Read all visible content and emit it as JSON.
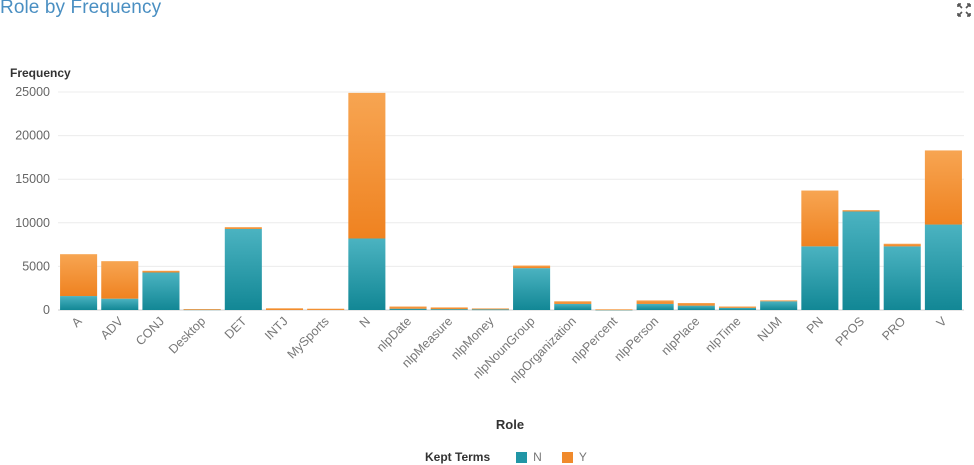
{
  "title": "Role by Frequency",
  "icons": {
    "maximize": "maximize-icon"
  },
  "chart_data": {
    "type": "bar",
    "stacked": true,
    "ylabel": "Frequency",
    "xlabel": "Role",
    "ylim": [
      0,
      25000
    ],
    "yticks": [
      0,
      5000,
      10000,
      15000,
      20000,
      25000
    ],
    "grid": true,
    "legend": {
      "title": "Kept Terms",
      "position": "bottom"
    },
    "categories": [
      "A",
      "ADV",
      "CONJ",
      "Desktop",
      "DET",
      "INTJ",
      "MySports",
      "N",
      "nlpDate",
      "nlpMeasure",
      "nlpMoney",
      "nlpNounGroup",
      "nlpOrganization",
      "nlpPercent",
      "nlpPerson",
      "nlpPlace",
      "nlpTime",
      "NUM",
      "PN",
      "PPOS",
      "PRO",
      "V"
    ],
    "series": [
      {
        "name": "N",
        "color": "#2196a6",
        "values": [
          1600,
          1300,
          4300,
          80,
          9300,
          0,
          0,
          8200,
          150,
          100,
          80,
          4800,
          700,
          50,
          700,
          500,
          250,
          1000,
          7300,
          11300,
          7300,
          9800
        ]
      },
      {
        "name": "Y",
        "color": "#f08a2c",
        "values": [
          4800,
          4300,
          200,
          20,
          200,
          200,
          150,
          16700,
          250,
          200,
          100,
          300,
          300,
          30,
          400,
          300,
          150,
          100,
          6400,
          150,
          300,
          8500
        ]
      }
    ]
  }
}
